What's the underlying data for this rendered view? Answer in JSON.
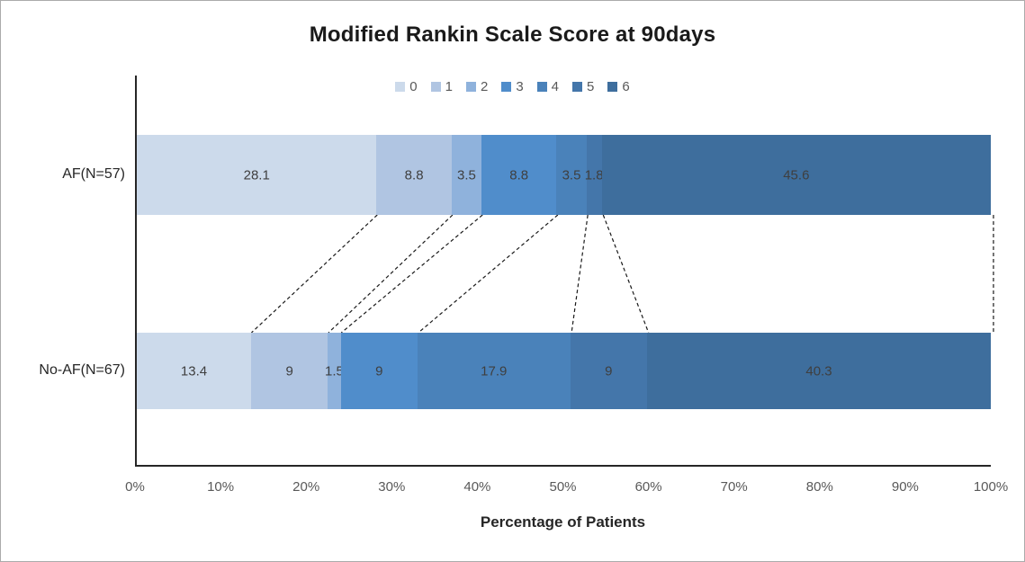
{
  "title": "Modified Rankin Scale Score at 90days",
  "x_axis_title": "Percentage of Patients",
  "legend_entries": [
    "0",
    "1",
    "2",
    "3",
    "4",
    "5",
    "6"
  ],
  "palette": [
    "#ccdaeb",
    "#b0c5e2",
    "#8fb2dc",
    "#508dcb",
    "#4a82ba",
    "#4476aa",
    "#3e6e9d"
  ],
  "colors": {
    "value_label": "#3f3f3f",
    "axis_text": "#595959",
    "axis_line": "#262626",
    "connector_line": "#1a1a1a",
    "frame_border": "#ababab",
    "background": "#ffffff"
  },
  "x_ticks": [
    "0%",
    "10%",
    "20%",
    "30%",
    "40%",
    "50%",
    "60%",
    "70%",
    "80%",
    "90%",
    "100%"
  ],
  "chart_data": {
    "type": "bar",
    "orientation": "horizontal",
    "stacked": true,
    "title": "Modified Rankin Scale Score at 90days",
    "xlabel": "Percentage of Patients",
    "ylabel": "",
    "xlim": [
      0,
      100
    ],
    "grid": false,
    "legend_position": "top",
    "categories": [
      "AF(N=57)",
      "No-AF(N=67)"
    ],
    "series": [
      {
        "name": "0",
        "values": [
          28.1,
          13.4
        ]
      },
      {
        "name": "1",
        "values": [
          8.8,
          9
        ]
      },
      {
        "name": "2",
        "values": [
          3.5,
          1.5
        ]
      },
      {
        "name": "3",
        "values": [
          8.8,
          9
        ]
      },
      {
        "name": "4",
        "values": [
          3.5,
          17.9
        ]
      },
      {
        "name": "5",
        "values": [
          1.8,
          9
        ]
      },
      {
        "name": "6",
        "values": [
          45.6,
          40.3
        ]
      }
    ],
    "data_labels": {
      "AF(N=57)": [
        "28.1",
        "8.8",
        "3.5",
        "8.8",
        "3.5",
        "1.8",
        "45.6"
      ],
      "No-AF(N=67)": [
        "13.4",
        "9",
        "1.5",
        "9",
        "17.9",
        "9",
        "40.3"
      ]
    },
    "annotations": "dashed connector lines join cumulative segment boundaries of the two bars, including a vertical line at 100%"
  }
}
